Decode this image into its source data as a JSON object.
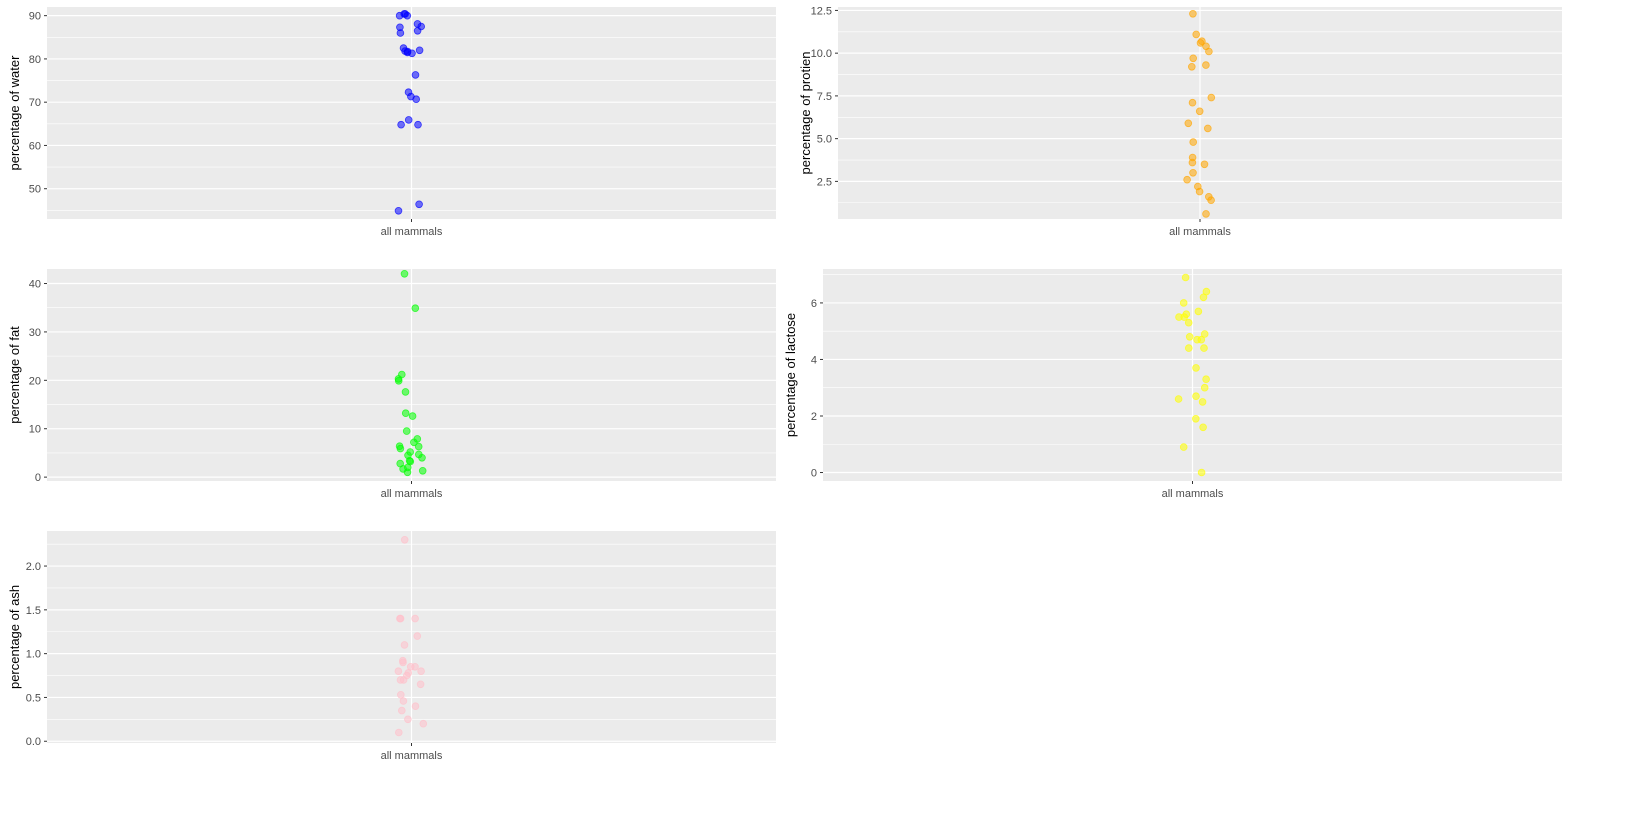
{
  "chart_data": [
    {
      "type": "scatter",
      "subtype": "jitter",
      "xlabel": "",
      "ylabel": "percentage of water",
      "categories": [
        "all mammals"
      ],
      "ylim": [
        43,
        92
      ],
      "yticks": [
        50,
        60,
        70,
        80,
        90
      ],
      "grid": true,
      "point_color": "#0000ff",
      "values": [
        90.4,
        90.4,
        90.0,
        90.0,
        88.1,
        87.5,
        87.3,
        86.5,
        86.0,
        82.5,
        82.0,
        81.8,
        81.7,
        81.5,
        81.3,
        76.3,
        72.3,
        71.3,
        70.7,
        65.9,
        64.8,
        64.8,
        46.4,
        44.9
      ]
    },
    {
      "type": "scatter",
      "subtype": "jitter",
      "xlabel": "",
      "ylabel": "percentage of protien",
      "categories": [
        "all mammals"
      ],
      "ylim": [
        0.3,
        12.7
      ],
      "yticks": [
        2.5,
        5.0,
        7.5,
        10.0,
        12.5
      ],
      "ytick_labels": [
        "2.5",
        "5.0",
        "7.5",
        "10.0",
        "12.5"
      ],
      "grid": true,
      "point_color": "#ffa500",
      "values": [
        12.3,
        11.1,
        10.7,
        10.6,
        10.4,
        10.1,
        9.7,
        9.3,
        9.2,
        7.4,
        7.1,
        6.6,
        5.9,
        5.6,
        4.8,
        3.9,
        3.6,
        3.5,
        3.0,
        2.6,
        2.2,
        1.9,
        1.6,
        1.4,
        0.6
      ]
    },
    {
      "type": "scatter",
      "subtype": "jitter",
      "xlabel": "",
      "ylabel": "percentage of fat",
      "categories": [
        "all mammals"
      ],
      "ylim": [
        -0.8,
        43
      ],
      "yticks": [
        0,
        10,
        20,
        30,
        40
      ],
      "grid": true,
      "point_color": "#00ff00",
      "values": [
        42.0,
        34.9,
        21.2,
        20.3,
        19.9,
        17.6,
        13.2,
        12.6,
        9.5,
        7.9,
        7.2,
        6.4,
        6.3,
        5.9,
        5.2,
        4.7,
        4.5,
        4.0,
        3.4,
        3.2,
        2.8,
        2.0,
        1.7,
        1.3,
        1.0
      ]
    },
    {
      "type": "scatter",
      "subtype": "jitter",
      "xlabel": "",
      "ylabel": "percentage of lactose",
      "categories": [
        "all mammals"
      ],
      "ylim": [
        -0.3,
        7.2
      ],
      "yticks": [
        0,
        2,
        4,
        6
      ],
      "grid": true,
      "point_color": "#ffff00",
      "values": [
        6.9,
        6.4,
        6.2,
        6.0,
        5.7,
        5.6,
        5.5,
        5.5,
        5.3,
        4.9,
        4.8,
        4.7,
        4.7,
        4.4,
        4.4,
        3.7,
        3.3,
        3.0,
        2.7,
        2.6,
        2.5,
        1.9,
        1.6,
        0.9,
        0.0
      ]
    },
    {
      "type": "scatter",
      "subtype": "jitter",
      "xlabel": "",
      "ylabel": "percentage of ash",
      "categories": [
        "all mammals"
      ],
      "ylim": [
        -0.02,
        2.4
      ],
      "yticks": [
        0.0,
        0.5,
        1.0,
        1.5,
        2.0
      ],
      "ytick_labels": [
        "0.0",
        "0.5",
        "1.0",
        "1.5",
        "2.0"
      ],
      "grid": true,
      "point_color": "#ffc0cb",
      "values": [
        2.3,
        1.4,
        1.4,
        1.4,
        1.2,
        1.1,
        0.92,
        0.9,
        0.85,
        0.85,
        0.8,
        0.8,
        0.78,
        0.75,
        0.7,
        0.7,
        0.65,
        0.53,
        0.46,
        0.4,
        0.35,
        0.25,
        0.2,
        0.1
      ]
    }
  ]
}
